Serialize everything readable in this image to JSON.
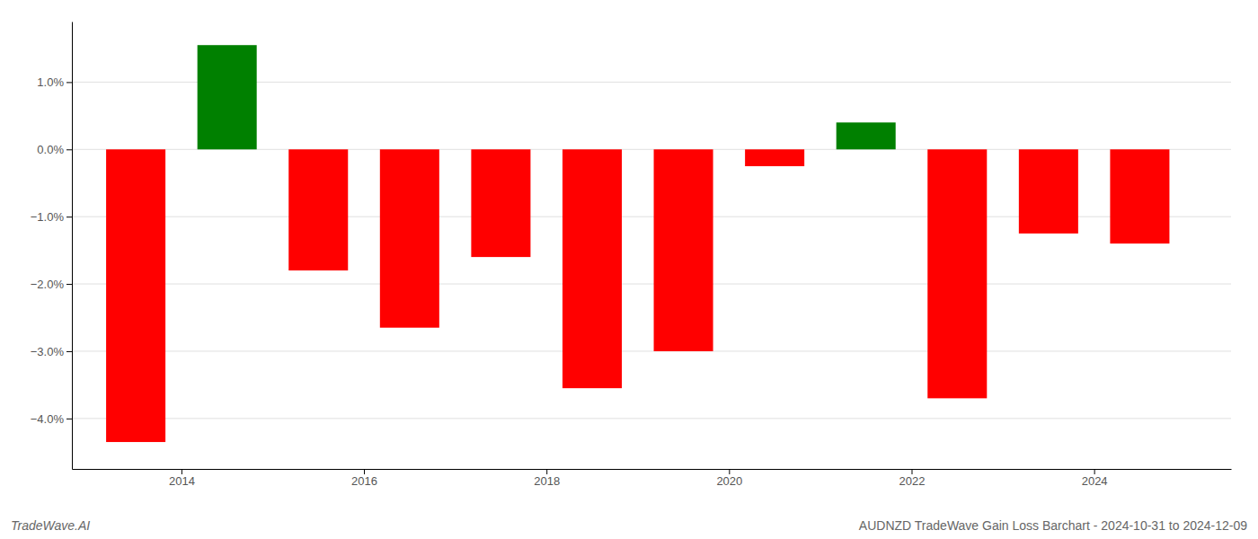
{
  "chart_data": {
    "type": "bar",
    "title": "AUDNZD TradeWave Gain Loss Barchart - 2024-10-31 to 2024-12-09",
    "annotations": [
      "TradeWave.AI"
    ],
    "x": [
      2013,
      2014,
      2015,
      2016,
      2017,
      2018,
      2019,
      2020,
      2021,
      2022,
      2023,
      2024
    ],
    "values": [
      -4.35,
      1.55,
      -1.8,
      -2.65,
      -1.6,
      -3.55,
      -3.0,
      -0.25,
      0.4,
      -3.7,
      -1.25,
      -1.4
    ],
    "colors": [
      "#ff0000",
      "#008000",
      "#ff0000",
      "#ff0000",
      "#ff0000",
      "#ff0000",
      "#ff0000",
      "#ff0000",
      "#008000",
      "#ff0000",
      "#ff0000",
      "#ff0000"
    ],
    "xlim": [
      2012.8,
      2025.5
    ],
    "xticks": [
      2014,
      2016,
      2018,
      2020,
      2022,
      2024
    ],
    "ylim": [
      -4.75,
      1.9
    ],
    "yticks": [
      {
        "value": -4.0,
        "label": "−4.0%"
      },
      {
        "value": -3.0,
        "label": "−3.0%"
      },
      {
        "value": -2.0,
        "label": "−2.0%"
      },
      {
        "value": -1.0,
        "label": "−1.0%"
      },
      {
        "value": 0.0,
        "label": "0.0%"
      },
      {
        "value": 1.0,
        "label": "1.0%"
      }
    ],
    "grid": true
  }
}
